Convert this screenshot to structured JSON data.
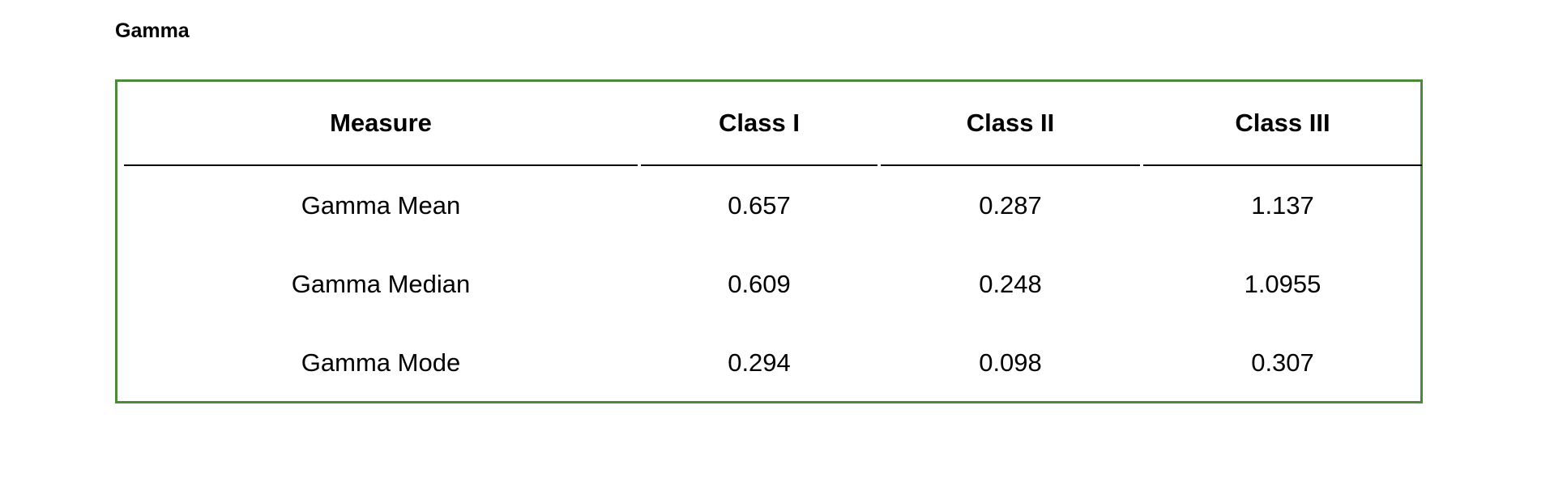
{
  "title": "Gamma",
  "accent_color": "#4a8a38",
  "table": {
    "headers": [
      "Measure",
      "Class I",
      "Class II",
      "Class III"
    ],
    "rows": [
      [
        "Gamma Mean",
        "0.657",
        "0.287",
        "1.137"
      ],
      [
        "Gamma Median",
        "0.609",
        "0.248",
        "1.0955"
      ],
      [
        "Gamma Mode",
        "0.294",
        "0.098",
        "0.307"
      ]
    ]
  }
}
